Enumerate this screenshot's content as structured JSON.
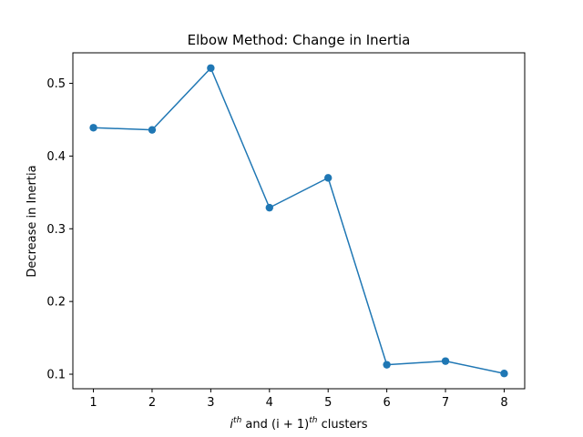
{
  "chart_data": {
    "type": "line",
    "title": "Elbow Method: Change in Inertia",
    "xlabel_parts": [
      "i",
      "th",
      " and ",
      "(i + 1)",
      "th",
      " clusters"
    ],
    "ylabel": "Decrease in Inertia",
    "x": [
      1,
      2,
      3,
      4,
      5,
      6,
      7,
      8
    ],
    "xticks": [
      "1",
      "2",
      "3",
      "4",
      "5",
      "6",
      "7",
      "8"
    ],
    "yticks": [
      "0.1",
      "0.2",
      "0.3",
      "0.4",
      "0.5"
    ],
    "ytick_values": [
      0.1,
      0.2,
      0.3,
      0.4,
      0.5
    ],
    "xlim": [
      0.65,
      8.35
    ],
    "ylim": [
      0.08,
      0.542
    ],
    "grid": false,
    "series": [
      {
        "values": [
          0.439,
          0.436,
          0.521,
          0.329,
          0.37,
          0.113,
          0.118,
          0.101
        ],
        "color": "#1f77b4",
        "marker": "circle"
      }
    ]
  }
}
